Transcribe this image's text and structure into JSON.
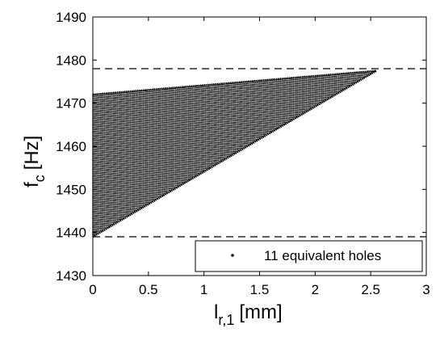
{
  "chart_data": {
    "type": "scatter",
    "xlim": [
      0,
      3
    ],
    "ylim": [
      1430,
      1490
    ],
    "x_ticks": [
      0,
      0.5,
      1,
      1.5,
      2,
      2.5,
      3
    ],
    "y_ticks": [
      1430,
      1440,
      1450,
      1460,
      1470,
      1480,
      1490
    ],
    "x_tick_labels": [
      "0",
      "0.5",
      "1",
      "1.5",
      "2",
      "2.5",
      "3"
    ],
    "y_tick_labels": [
      "1430",
      "1440",
      "1450",
      "1460",
      "1470",
      "1480",
      "1490"
    ],
    "xlabel": {
      "main": "l",
      "sub": "r,1",
      "unit": "[mm]"
    },
    "ylabel": {
      "main": "f",
      "sub": "c",
      "unit": "[Hz]"
    },
    "grid": false,
    "legend_position": "bottom-right",
    "series": [
      {
        "name": "11 equivalent holes",
        "marker": "dot",
        "color": "#000000",
        "x_range": [
          0,
          2.55
        ],
        "upper_boundary": [
          [
            0,
            1472.0
          ],
          [
            2.55,
            1477.5
          ]
        ],
        "lower_boundary": [
          [
            0,
            1439.0
          ],
          [
            2.55,
            1477.5
          ]
        ]
      }
    ],
    "reference_lines": [
      {
        "y": 1478,
        "style": "dashed"
      },
      {
        "y": 1439,
        "style": "dashed"
      }
    ]
  }
}
